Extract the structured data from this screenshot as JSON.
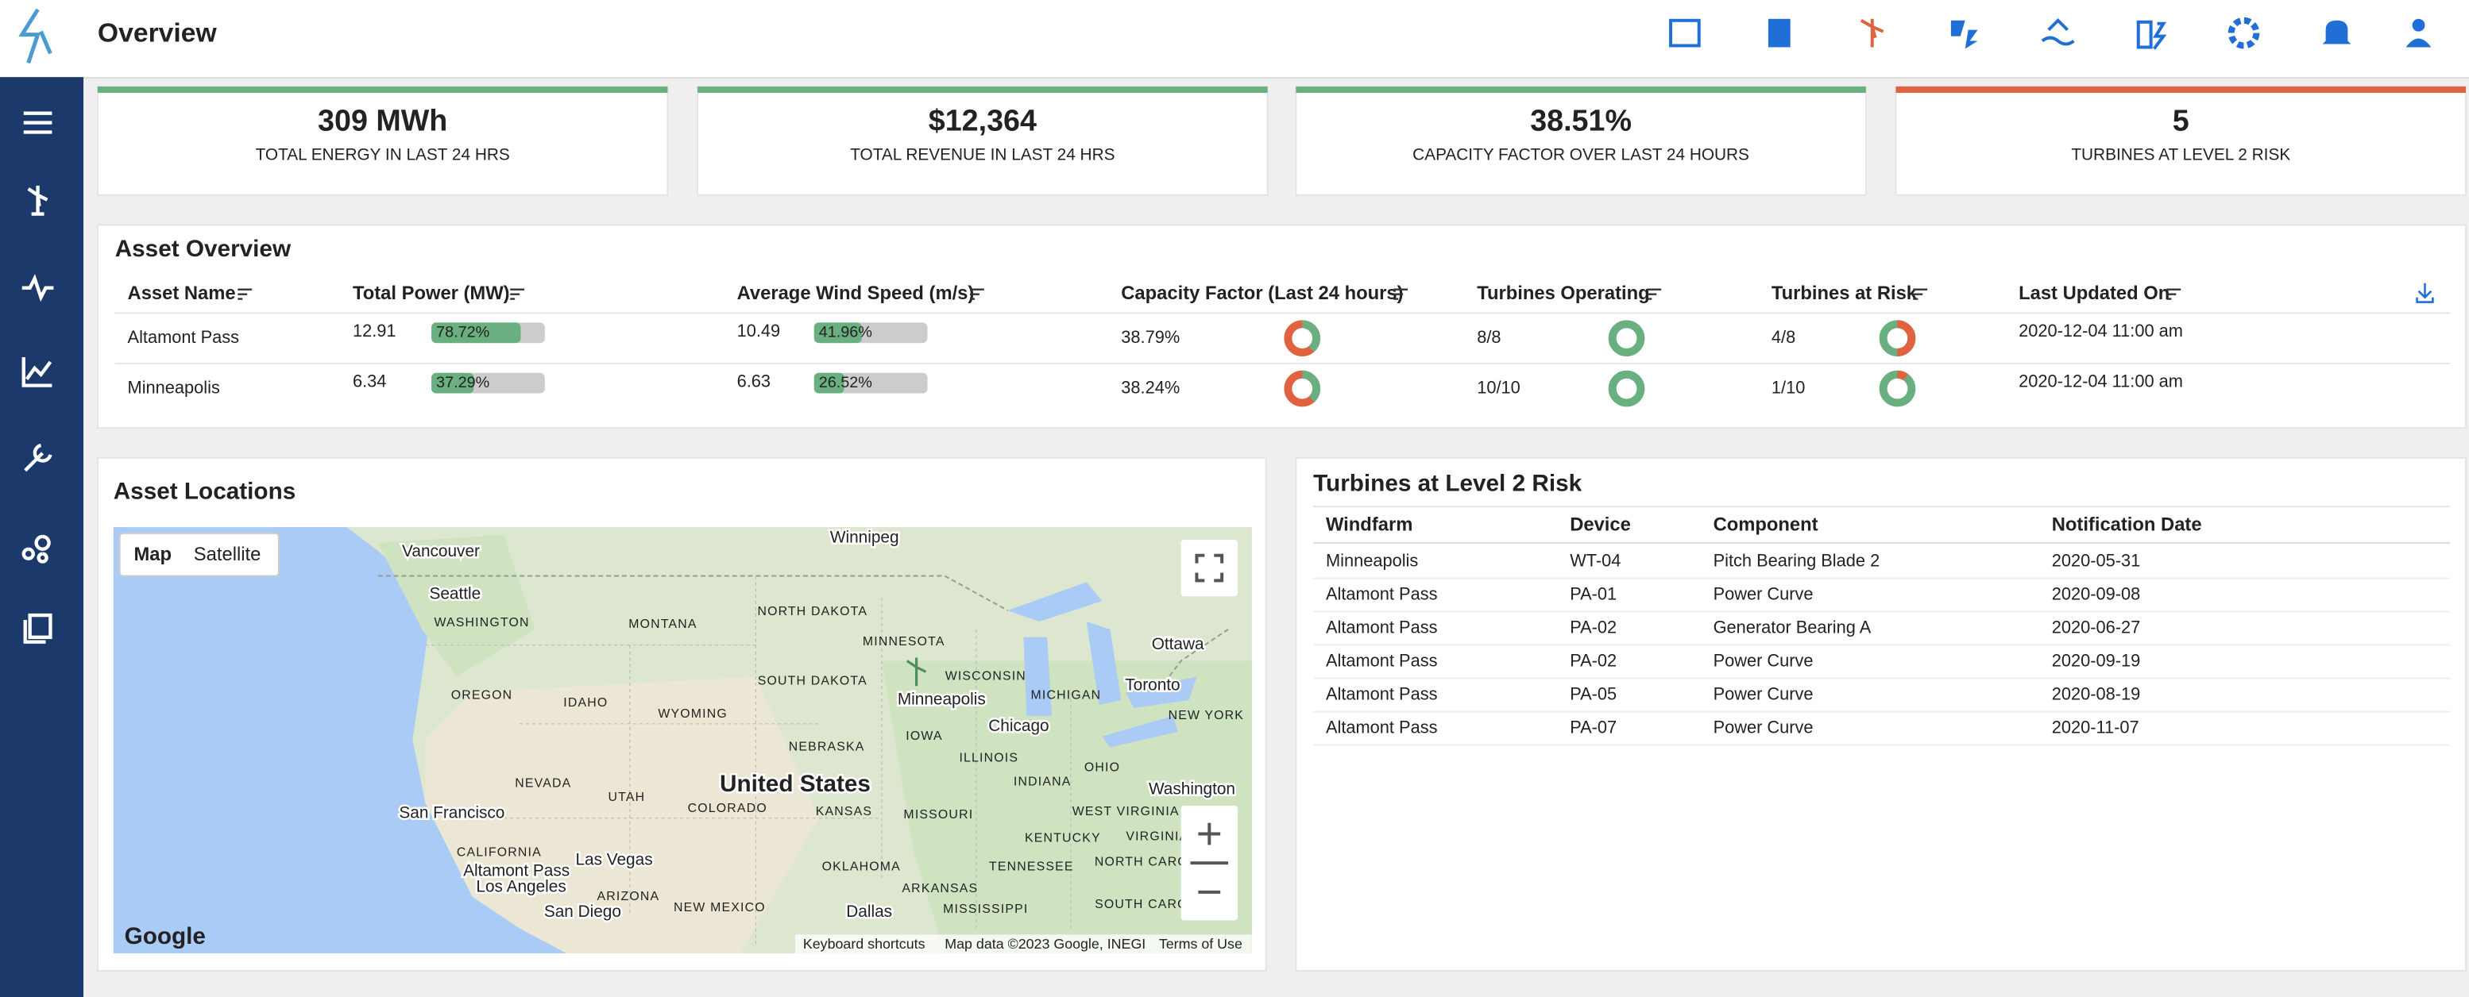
{
  "header": {
    "title": "Overview"
  },
  "kpis": [
    {
      "value": "309 MWh",
      "label": "TOTAL ENERGY IN LAST 24 HRS"
    },
    {
      "value": "$12,364",
      "label": "TOTAL REVENUE IN LAST 24 HRS"
    },
    {
      "value": "38.51%",
      "label": "CAPACITY FACTOR OVER LAST 24 HOURS"
    },
    {
      "value": "5",
      "label": "TURBINES AT LEVEL 2 RISK"
    }
  ],
  "asset_overview": {
    "title": "Asset Overview",
    "columns": [
      "Asset Name",
      "Total Power (MW)",
      "Average Wind Speed (m/s)",
      "Capacity Factor (Last 24 hours)",
      "Turbines Operating",
      "Turbines at Risk",
      "Last Updated On"
    ],
    "rows": [
      {
        "name": "Altamont Pass",
        "power": "12.91",
        "power_pct": "78.72%",
        "wind": "10.49",
        "wind_pct": "41.96%",
        "capacity": "38.79%",
        "operating": "8/8",
        "at_risk": "4/8",
        "updated": "2020-12-04 11:00 am"
      },
      {
        "name": "Minneapolis",
        "power": "6.34",
        "power_pct": "37.29%",
        "wind": "6.63",
        "wind_pct": "26.52%",
        "capacity": "38.24%",
        "operating": "10/10",
        "at_risk": "1/10",
        "updated": "2020-12-04 11:00 am"
      }
    ]
  },
  "map": {
    "title": "Asset Locations",
    "buttons": [
      "Map",
      "Satellite"
    ],
    "labels": [
      "Vancouver",
      "Seattle",
      "WASHINGTON",
      "MONTANA",
      "NORTH DAKOTA",
      "Winnipeg",
      "MINNESOTA",
      "WISCONSIN",
      "Minneapolis",
      "MICHIGAN",
      "Ottawa",
      "Toronto",
      "NEW YORK",
      "OREGON",
      "IDAHO",
      "WYOMING",
      "SOUTH DAKOTA",
      "IOWA",
      "Chicago",
      "NEBRASKA",
      "NEVADA",
      "UTAH",
      "United States",
      "ILLINOIS",
      "INDIANA",
      "OHIO",
      "Washington",
      "COLORADO",
      "KANSAS",
      "MISSOURI",
      "WEST VIRGINIA",
      "San Francisco",
      "CALIFORNIA",
      "Altamont Pass",
      "Las Vegas",
      "Los Angeles",
      "KENTUCKY",
      "VIRGINIA",
      "OKLAHOMA",
      "TENNESSEE",
      "ARIZONA",
      "NEW MEXICO",
      "ARKANSAS",
      "NORTH CAROLINA",
      "San Diego",
      "Dallas",
      "MISSISSIPPI",
      "SOUTH CAROLINA"
    ],
    "logo": "Google",
    "footer": [
      "Keyboard shortcuts",
      "Map data ©2023 Google, INEGI",
      "Terms of Use"
    ]
  },
  "risk": {
    "title": "Turbines at Level 2 Risk",
    "columns": [
      "Windfarm",
      "Device",
      "Component",
      "Notification Date"
    ],
    "rows": [
      [
        "Minneapolis",
        "WT-04",
        "Pitch Bearing Blade 2",
        "2020-05-31"
      ],
      [
        "Altamont Pass",
        "PA-01",
        "Power Curve",
        "2020-09-08"
      ],
      [
        "Altamont Pass",
        "PA-02",
        "Generator Bearing A",
        "2020-06-27"
      ],
      [
        "Altamont Pass",
        "PA-02",
        "Power Curve",
        "2020-09-19"
      ],
      [
        "Altamont Pass",
        "PA-05",
        "Power Curve",
        "2020-08-19"
      ],
      [
        "Altamont Pass",
        "PA-07",
        "Power Curve",
        "2020-11-07"
      ]
    ]
  }
}
